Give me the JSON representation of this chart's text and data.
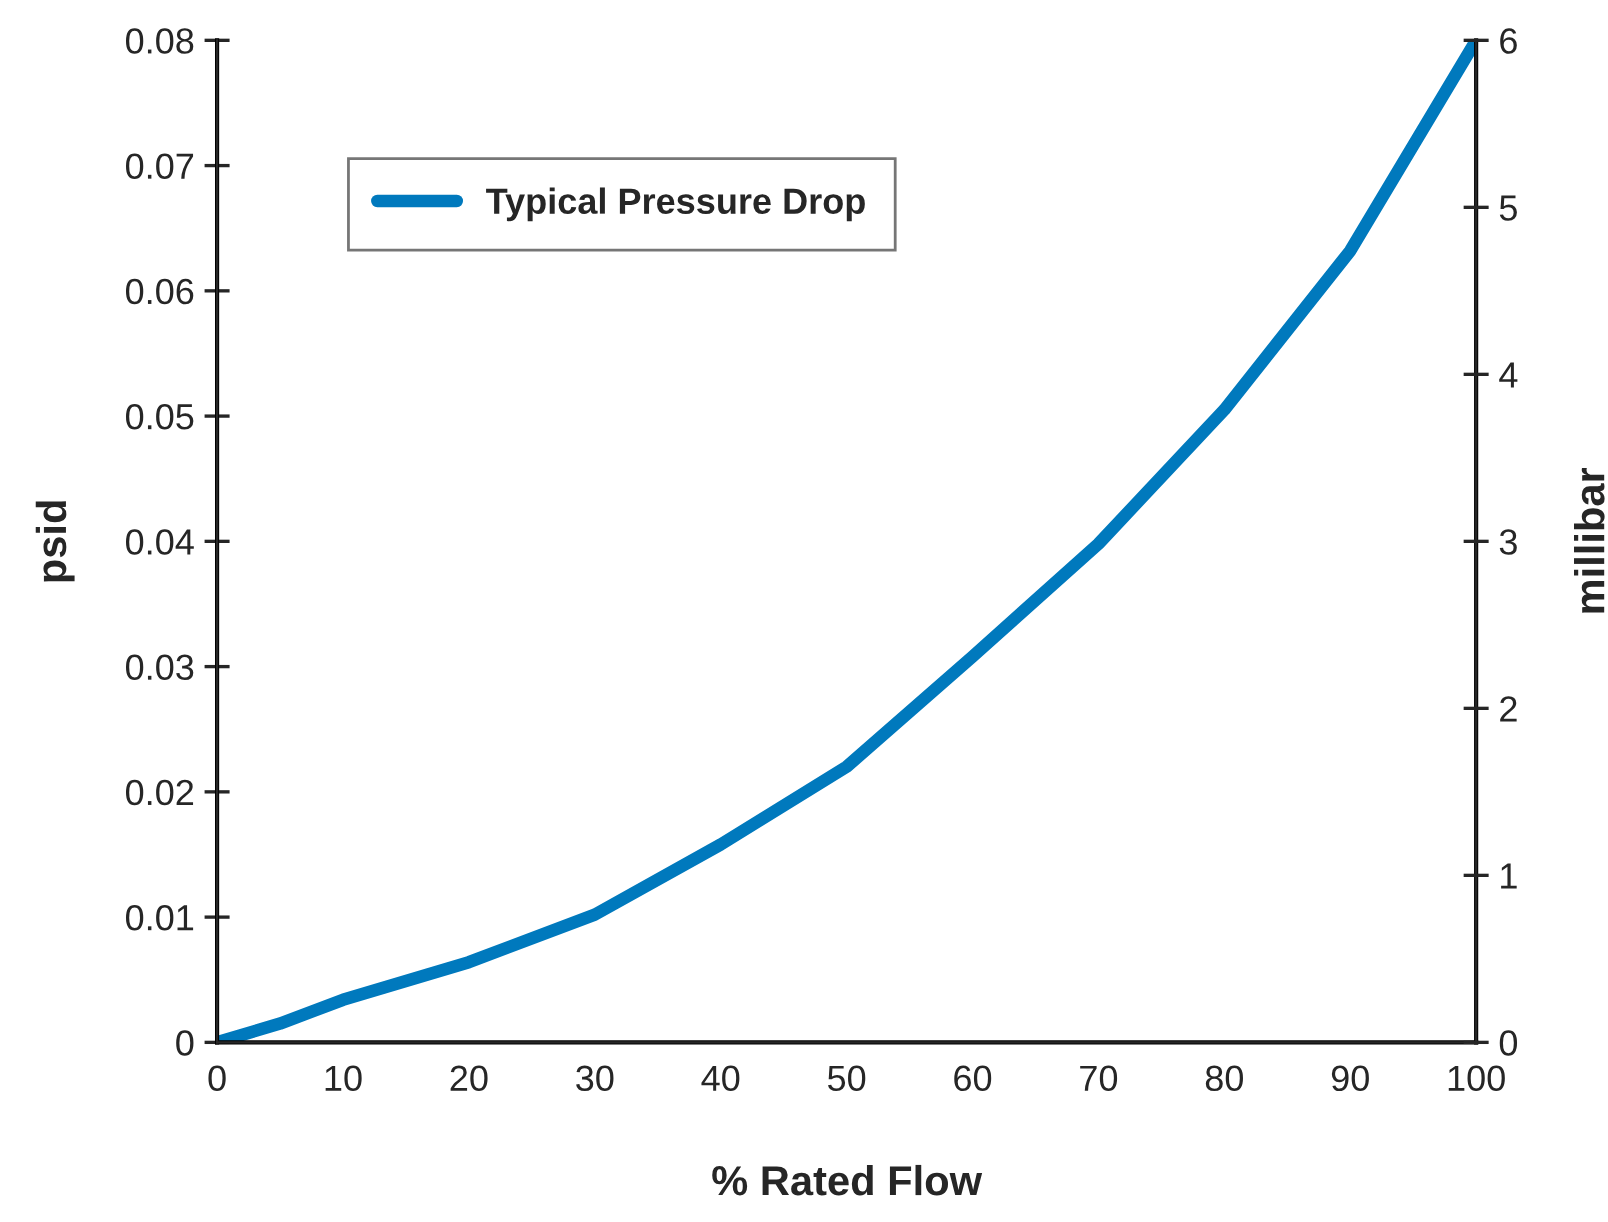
{
  "chart_data": {
    "type": "line",
    "xlabel": "% Rated Flow",
    "ylabel": "psid",
    "y2label": "millibar",
    "x": [
      0,
      5,
      10,
      20,
      30,
      40,
      50,
      60,
      70,
      80,
      90,
      100
    ],
    "series": [
      {
        "name": "Typical Pressure Drop",
        "color": "#0079bd",
        "values": [
          0,
          0.0015,
          0.0034,
          0.0064,
          0.0102,
          0.0158,
          0.022,
          0.0308,
          0.0398,
          0.0505,
          0.0632,
          0.08
        ]
      }
    ],
    "xlim": [
      0,
      100
    ],
    "xticks": [
      0,
      10,
      20,
      30,
      40,
      50,
      60,
      70,
      80,
      90,
      100
    ],
    "ylim": [
      0,
      0.08
    ],
    "yticks": [
      0,
      {
        "value": 0.01,
        "label": "0.01"
      },
      {
        "value": 0.02,
        "label": "0.02"
      },
      {
        "value": 0.03,
        "label": "0.03"
      },
      {
        "value": 0.04,
        "label": "0.04"
      },
      {
        "value": 0.05,
        "label": "0.05"
      },
      {
        "value": 0.06,
        "label": "0.06"
      },
      {
        "value": 0.07,
        "label": "0.07"
      },
      {
        "value": 0.08,
        "label": "0.08"
      }
    ],
    "y2lim": [
      0,
      6
    ],
    "y2ticks": [
      0,
      1,
      2,
      3,
      4,
      5,
      6
    ],
    "grid": false,
    "legend": "top left",
    "marker": "none",
    "line_style": "solid"
  }
}
